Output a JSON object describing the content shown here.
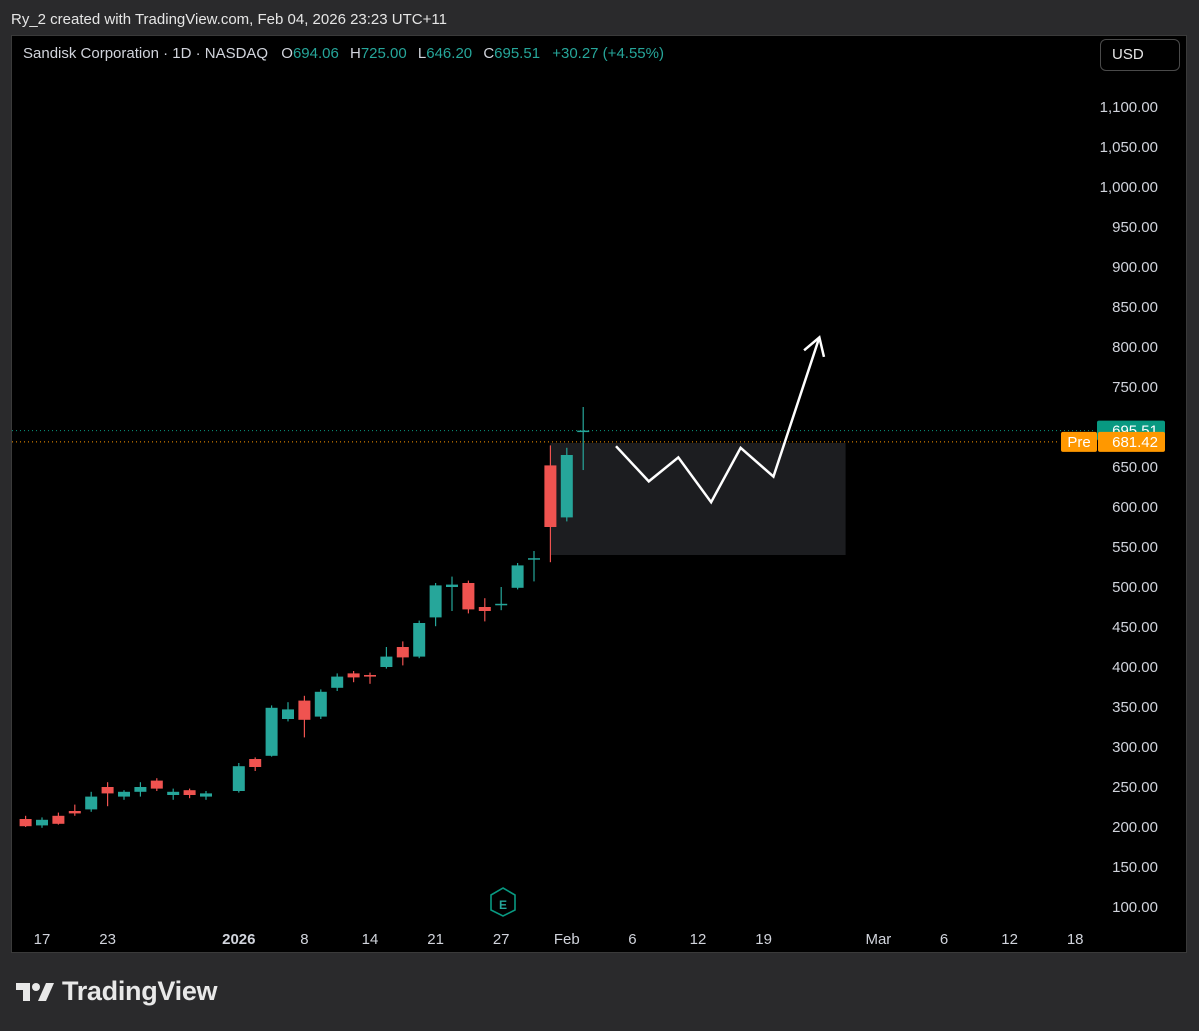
{
  "credit": "Ry_2 created with TradingView.com, Feb 04, 2026 23:23 UTC+11",
  "legend": {
    "title": "Sandisk Corporation · 1D · NASDAQ",
    "o_label": "O",
    "o_value": "694.06",
    "h_label": "H",
    "h_value": "725.00",
    "l_label": "L",
    "l_value": "646.20",
    "c_label": "C",
    "c_value": "695.51",
    "change": "+30.27 (+4.55%)"
  },
  "currency_button": "USD",
  "brand": "TradingView",
  "earnings_marker": "E",
  "colors": {
    "up": "#26a69a",
    "down": "#ef5350",
    "price_tag": "#089981",
    "pre_tag": "#ff9800",
    "background": "#000000",
    "zone": "#1c1d20",
    "arrow": "#ffffff"
  },
  "chart_data": {
    "type": "candlestick",
    "title": "Sandisk Corporation · 1D · NASDAQ",
    "ylim": [
      80,
      1130
    ],
    "yticks": [
      "100.00",
      "150.00",
      "200.00",
      "250.00",
      "300.00",
      "350.00",
      "400.00",
      "450.00",
      "500.00",
      "550.00",
      "600.00",
      "650.00",
      "700.00",
      "750.00",
      "800.00",
      "850.00",
      "900.00",
      "950.00",
      "1,000.00",
      "1,050.00",
      "1,100.00"
    ],
    "ytick_values": [
      100,
      150,
      200,
      250,
      300,
      350,
      400,
      450,
      500,
      550,
      600,
      650,
      700,
      750,
      800,
      850,
      900,
      950,
      1000,
      1050,
      1100
    ],
    "xticks": [
      "17",
      "23",
      "2026",
      "8",
      "14",
      "21",
      "27",
      "Feb",
      "6",
      "12",
      "19",
      "Mar",
      "6",
      "12",
      "18"
    ],
    "xtick_index": [
      0,
      4,
      12,
      16,
      20,
      24,
      28,
      32,
      36,
      40,
      44,
      51,
      55,
      59,
      63
    ],
    "candles": [
      {
        "i": -1,
        "o": 210,
        "h": 214,
        "l": 200,
        "c": 201
      },
      {
        "i": 0,
        "o": 202,
        "h": 212,
        "l": 199,
        "c": 209
      },
      {
        "i": 1,
        "o": 214,
        "h": 218,
        "l": 203,
        "c": 204
      },
      {
        "i": 2,
        "o": 220,
        "h": 228,
        "l": 214,
        "c": 217
      },
      {
        "i": 3,
        "o": 222,
        "h": 244,
        "l": 219,
        "c": 238
      },
      {
        "i": 4,
        "o": 250,
        "h": 256,
        "l": 226,
        "c": 242
      },
      {
        "i": 5,
        "o": 238,
        "h": 246,
        "l": 234,
        "c": 244
      },
      {
        "i": 6,
        "o": 244,
        "h": 256,
        "l": 238,
        "c": 250
      },
      {
        "i": 7,
        "o": 258,
        "h": 261,
        "l": 245,
        "c": 248
      },
      {
        "i": 8,
        "o": 240,
        "h": 248,
        "l": 234,
        "c": 244
      },
      {
        "i": 9,
        "o": 246,
        "h": 248,
        "l": 236,
        "c": 240
      },
      {
        "i": 10,
        "o": 238,
        "h": 245,
        "l": 234,
        "c": 242
      },
      {
        "i": 12,
        "o": 245,
        "h": 280,
        "l": 243,
        "c": 276
      },
      {
        "i": 13,
        "o": 285,
        "h": 287,
        "l": 270,
        "c": 275
      },
      {
        "i": 14,
        "o": 289,
        "h": 352,
        "l": 288,
        "c": 349
      },
      {
        "i": 15,
        "o": 335,
        "h": 356,
        "l": 332,
        "c": 347
      },
      {
        "i": 16,
        "o": 358,
        "h": 364,
        "l": 312,
        "c": 334
      },
      {
        "i": 17,
        "o": 338,
        "h": 372,
        "l": 335,
        "c": 369
      },
      {
        "i": 18,
        "o": 374,
        "h": 392,
        "l": 370,
        "c": 388
      },
      {
        "i": 19,
        "o": 392,
        "h": 395,
        "l": 381,
        "c": 387
      },
      {
        "i": 20,
        "o": 390,
        "h": 393,
        "l": 379,
        "c": 388
      },
      {
        "i": 21,
        "o": 400,
        "h": 425,
        "l": 398,
        "c": 413
      },
      {
        "i": 22,
        "o": 425,
        "h": 432,
        "l": 402,
        "c": 412
      },
      {
        "i": 23,
        "o": 413,
        "h": 458,
        "l": 411,
        "c": 455
      },
      {
        "i": 24,
        "o": 462,
        "h": 505,
        "l": 451,
        "c": 502
      },
      {
        "i": 25,
        "o": 500,
        "h": 513,
        "l": 470,
        "c": 503
      },
      {
        "i": 26,
        "o": 505,
        "h": 508,
        "l": 467,
        "c": 472
      },
      {
        "i": 27,
        "o": 475,
        "h": 486,
        "l": 457,
        "c": 470
      },
      {
        "i": 28,
        "o": 478,
        "h": 500,
        "l": 471,
        "c": 479
      },
      {
        "i": 29,
        "o": 499,
        "h": 530,
        "l": 497,
        "c": 527
      },
      {
        "i": 30,
        "o": 535,
        "h": 545,
        "l": 507,
        "c": 536
      },
      {
        "i": 31,
        "o": 652,
        "h": 677,
        "l": 531,
        "c": 575
      },
      {
        "i": 32,
        "o": 587,
        "h": 674,
        "l": 582,
        "c": 665
      },
      {
        "i": 33,
        "o": 694.06,
        "h": 725,
        "l": 646.2,
        "c": 695.51
      }
    ],
    "last_price": 695.51,
    "last_price_label": "695.51",
    "pre_price": 681.42,
    "pre_label": "Pre",
    "pre_price_label": "681.42",
    "zone": {
      "i_start": 31,
      "i_end": 49,
      "top": 680,
      "bottom": 540
    },
    "projection_path": [
      {
        "i": 35,
        "p": 676
      },
      {
        "i": 37,
        "p": 632
      },
      {
        "i": 38.8,
        "p": 662
      },
      {
        "i": 40.8,
        "p": 606
      },
      {
        "i": 42.6,
        "p": 674
      },
      {
        "i": 44.6,
        "p": 638
      },
      {
        "i": 47.4,
        "p": 812
      }
    ]
  }
}
